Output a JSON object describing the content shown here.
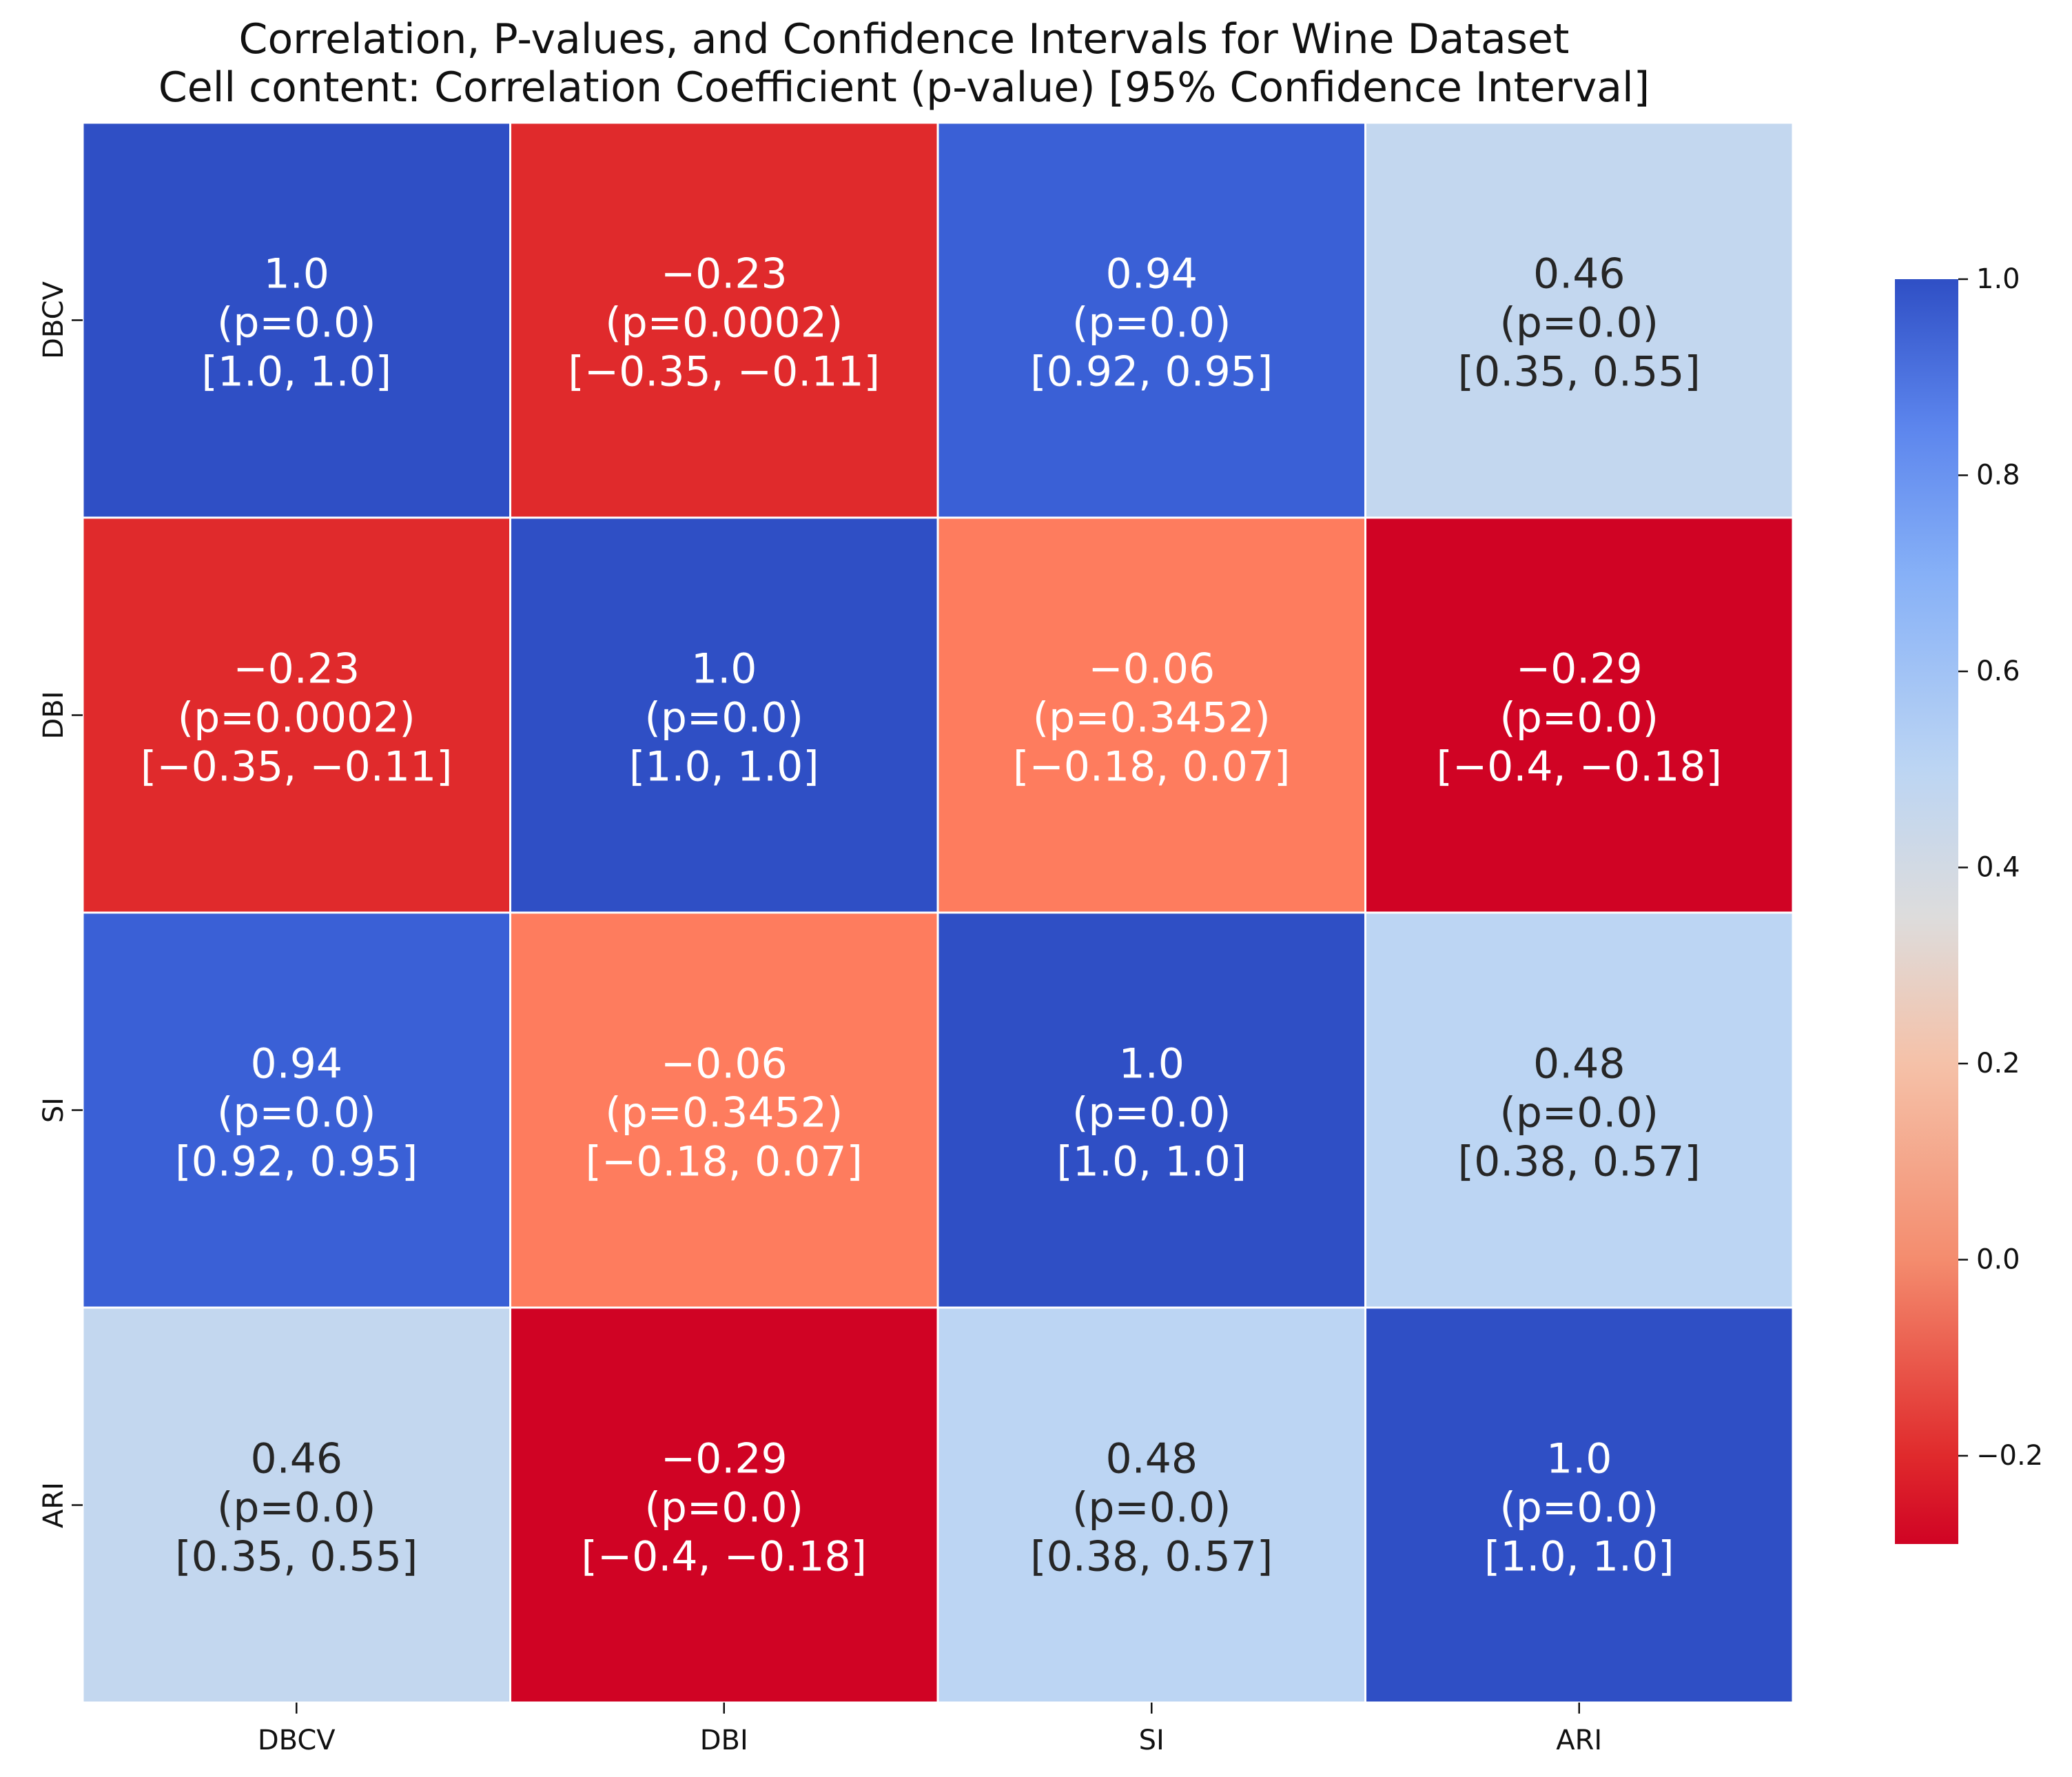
{
  "chart_data": {
    "type": "heatmap",
    "title": "Correlation, P-values, and Confidence Intervals for Wine Dataset",
    "subtitle": "Cell content: Correlation Coefficient (p-value) [95% Confidence Interval]",
    "row_labels": [
      "DBCV",
      "DBI",
      "SI",
      "ARI"
    ],
    "col_labels": [
      "DBCV",
      "DBI",
      "SI",
      "ARI"
    ],
    "values": [
      [
        1.0,
        -0.23,
        0.94,
        0.46
      ],
      [
        -0.23,
        1.0,
        -0.06,
        -0.29
      ],
      [
        0.94,
        -0.06,
        1.0,
        0.48
      ],
      [
        0.46,
        -0.29,
        0.48,
        1.0
      ]
    ],
    "cells": [
      [
        {
          "coef": "1.0",
          "p": "(p=0.0)",
          "ci": "[1.0, 1.0]",
          "fill": "#2f4fc5",
          "text_color": "#ffffff"
        },
        {
          "coef": "−0.23",
          "p": "(p=0.0002)",
          "ci": "[−0.35, −0.11]",
          "fill": "#e02a2c",
          "text_color": "#ffffff"
        },
        {
          "coef": "0.94",
          "p": "(p=0.0)",
          "ci": "[0.92, 0.95]",
          "fill": "#3a60d6",
          "text_color": "#ffffff"
        },
        {
          "coef": "0.46",
          "p": "(p=0.0)",
          "ci": "[0.35, 0.55]",
          "fill": "#c3d7ef",
          "text_color": "#262626"
        }
      ],
      [
        {
          "coef": "−0.23",
          "p": "(p=0.0002)",
          "ci": "[−0.35, −0.11]",
          "fill": "#e02a2c",
          "text_color": "#ffffff"
        },
        {
          "coef": "1.0",
          "p": "(p=0.0)",
          "ci": "[1.0, 1.0]",
          "fill": "#2f4fc5",
          "text_color": "#ffffff"
        },
        {
          "coef": "−0.06",
          "p": "(p=0.3452)",
          "ci": "[−0.18, 0.07]",
          "fill": "#fe7c5e",
          "text_color": "#ffffff"
        },
        {
          "coef": "−0.29",
          "p": "(p=0.0)",
          "ci": "[−0.4, −0.18]",
          "fill": "#d00324",
          "text_color": "#ffffff"
        }
      ],
      [
        {
          "coef": "0.94",
          "p": "(p=0.0)",
          "ci": "[0.92, 0.95]",
          "fill": "#3a60d6",
          "text_color": "#ffffff"
        },
        {
          "coef": "−0.06",
          "p": "(p=0.3452)",
          "ci": "[−0.18, 0.07]",
          "fill": "#fe7c5e",
          "text_color": "#ffffff"
        },
        {
          "coef": "1.0",
          "p": "(p=0.0)",
          "ci": "[1.0, 1.0]",
          "fill": "#2f4fc5",
          "text_color": "#ffffff"
        },
        {
          "coef": "0.48",
          "p": "(p=0.0)",
          "ci": "[0.38, 0.57]",
          "fill": "#bcd5f3",
          "text_color": "#262626"
        }
      ],
      [
        {
          "coef": "0.46",
          "p": "(p=0.0)",
          "ci": "[0.35, 0.55]",
          "fill": "#c3d7ef",
          "text_color": "#262626"
        },
        {
          "coef": "−0.29",
          "p": "(p=0.0)",
          "ci": "[−0.4, −0.18]",
          "fill": "#d00324",
          "text_color": "#ffffff"
        },
        {
          "coef": "0.48",
          "p": "(p=0.0)",
          "ci": "[0.38, 0.57]",
          "fill": "#bcd5f3",
          "text_color": "#262626"
        },
        {
          "coef": "1.0",
          "p": "(p=0.0)",
          "ci": "[1.0, 1.0]",
          "fill": "#2f4fc5",
          "text_color": "#ffffff"
        }
      ]
    ],
    "colorbar": {
      "min": -0.29,
      "max": 1.0,
      "ticks": [
        1.0,
        0.8,
        0.6,
        0.4,
        0.2,
        0.0,
        -0.2
      ],
      "tick_labels": [
        "1.0",
        "0.8",
        "0.6",
        "0.4",
        "0.2",
        "0.0",
        "−0.2"
      ],
      "colormap": "coolwarm_r",
      "stops": [
        {
          "value": -0.29,
          "color": "#d00324"
        },
        {
          "value": -0.2,
          "color": "#e02a2c"
        },
        {
          "value": 0.0,
          "color": "#f48c6e"
        },
        {
          "value": 0.2,
          "color": "#f5c1a8"
        },
        {
          "value": 0.35,
          "color": "#dddcdc"
        },
        {
          "value": 0.5,
          "color": "#bcd5f3"
        },
        {
          "value": 0.7,
          "color": "#86b0f7"
        },
        {
          "value": 0.85,
          "color": "#5c85ed"
        },
        {
          "value": 1.0,
          "color": "#2f4fc5"
        }
      ]
    },
    "grid_line_color": "#ffffff",
    "legend": "right"
  }
}
